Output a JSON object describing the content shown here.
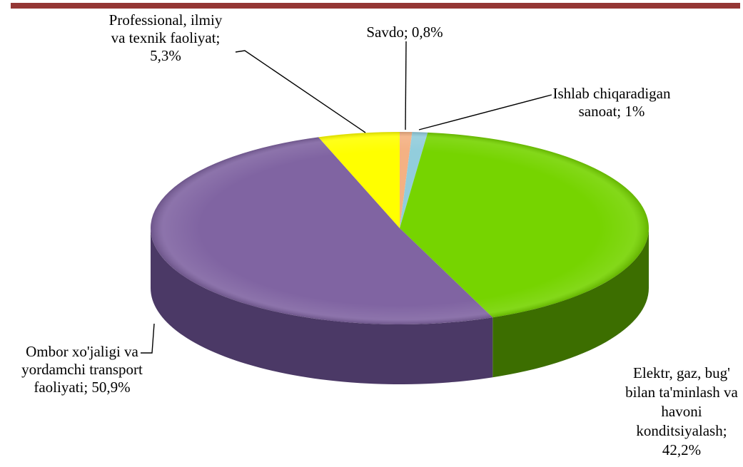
{
  "chart_data": {
    "type": "pie",
    "title": "",
    "slices": [
      {
        "label": "Savdo",
        "value": 0.8,
        "color": "#F4B183",
        "side": "#b4683a",
        "label_lines": [
          "Savdo; 0,8%"
        ]
      },
      {
        "label": "Ishlab chiqaradigan sanoat",
        "value": 1.0,
        "color": "#92CDDC",
        "side": "#4f8a99",
        "label_lines": [
          "Ishlab chiqaradigan",
          "sanoat; 1%"
        ]
      },
      {
        "label": "Elektr, gaz, bug' bilan ta'minlash va havoni konditsiyalash",
        "value": 42.2,
        "color": "#76D400",
        "side": "#3c6e00",
        "label_lines": [
          "Elektr, gaz, bug'",
          "bilan ta'minlash va",
          "havoni",
          "konditsiyalash;",
          "42,2%"
        ]
      },
      {
        "label": "Ombor xo'jaligi va yordamchi transport faoliyati",
        "value": 50.9,
        "color": "#8064A2",
        "side": "#4b3966",
        "label_lines": [
          "Ombor xo'jaligi va",
          "yordamchi transport",
          "faoliyati; 50,9%"
        ]
      },
      {
        "label": "Professional, ilmiy va texnik faoliyat",
        "value": 5.3,
        "color": "#FFFF00",
        "side": "#b0b000",
        "label_lines": [
          "Professional, ilmiy",
          "va texnik faoliyat;",
          "5,3%"
        ]
      }
    ]
  }
}
